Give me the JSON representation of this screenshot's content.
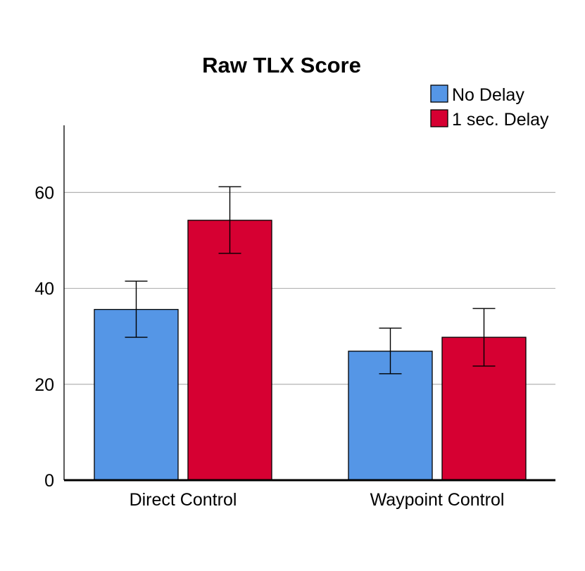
{
  "chart_data": {
    "type": "bar",
    "title": "Raw TLX Score",
    "xlabel": "",
    "ylabel": "",
    "categories": [
      "Direct Control",
      "Waypoint Control"
    ],
    "series": [
      {
        "name": "No Delay",
        "color": "#5596e6",
        "values": [
          35.6,
          26.9
        ],
        "error_low": [
          29.8,
          22.2
        ],
        "error_high": [
          41.5,
          31.7
        ]
      },
      {
        "name": "1 sec. Delay",
        "color": "#d60032",
        "values": [
          54.2,
          29.8
        ],
        "error_low": [
          47.3,
          23.8
        ],
        "error_high": [
          61.2,
          35.8
        ]
      }
    ],
    "ylim": [
      0,
      74
    ],
    "yticks": [
      0,
      20,
      40,
      60
    ],
    "ytick_labels": [
      "0",
      "20",
      "40",
      "60"
    ],
    "grid": true,
    "legend_position": "top-right"
  }
}
